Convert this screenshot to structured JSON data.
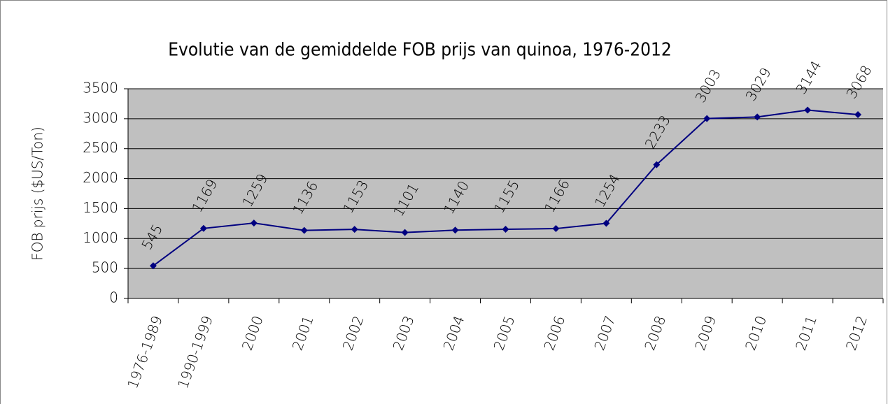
{
  "chart_data": {
    "type": "line",
    "title": "Evolutie van de gemiddelde FOB prijs van quinoa, 1976-2012",
    "y_label": "FOB prijs ($US/Ton)",
    "categories": [
      "1976-1989",
      "1990-1999",
      "2000",
      "2001",
      "2002",
      "2003",
      "2004",
      "2005",
      "2006",
      "2007",
      "2008",
      "2009",
      "2010",
      "2011",
      "2012"
    ],
    "values": [
      545,
      1169,
      1259,
      1136,
      1153,
      1101,
      1140,
      1155,
      1166,
      1254,
      2233,
      3003,
      3029,
      3144,
      3068
    ],
    "color": "#000080",
    "plot_background": "#c0c0c0",
    "ylim": [
      0,
      3500
    ],
    "yticks": [
      0,
      500,
      1000,
      1500,
      2000,
      2500,
      3000,
      3500
    ],
    "grid": true
  }
}
